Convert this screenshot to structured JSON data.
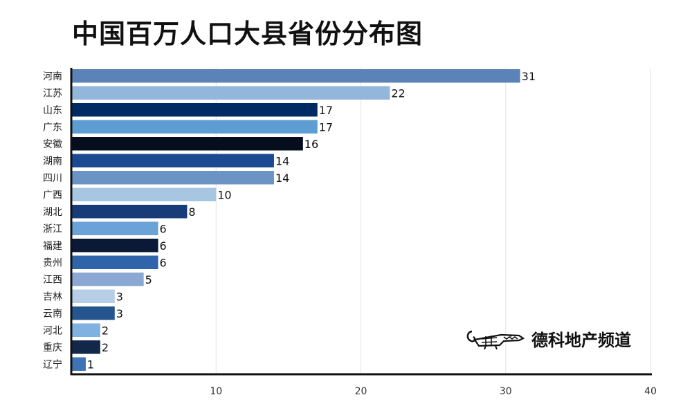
{
  "title": "中国百万人口大县省份分布图",
  "brand": {
    "name": "德科地产频道",
    "icon": "crocodile-logo"
  },
  "chart_data": {
    "type": "bar",
    "orientation": "horizontal",
    "categories": [
      "河南",
      "江苏",
      "山东",
      "广东",
      "安徽",
      "湖南",
      "四川",
      "广西",
      "湖北",
      "浙江",
      "福建",
      "贵州",
      "江西",
      "吉林",
      "云南",
      "河北",
      "重庆",
      "辽宁"
    ],
    "values": [
      31,
      22,
      17,
      17,
      16,
      14,
      14,
      10,
      8,
      6,
      6,
      6,
      5,
      3,
      3,
      2,
      2,
      1
    ],
    "colors": [
      "#5b83b8",
      "#93b6db",
      "#002a63",
      "#5c9dd3",
      "#050d1f",
      "#1c4a92",
      "#6b93c4",
      "#a6c6e2",
      "#173c78",
      "#6ba2d8",
      "#0a1a36",
      "#2f63aa",
      "#8ba8d2",
      "#b7cfe6",
      "#25558f",
      "#7fb2e0",
      "#12284a",
      "#3f73b8"
    ],
    "xlim": [
      0,
      40
    ],
    "xticks": [
      10,
      20,
      30,
      40
    ],
    "grid": true,
    "data_labels": true
  }
}
